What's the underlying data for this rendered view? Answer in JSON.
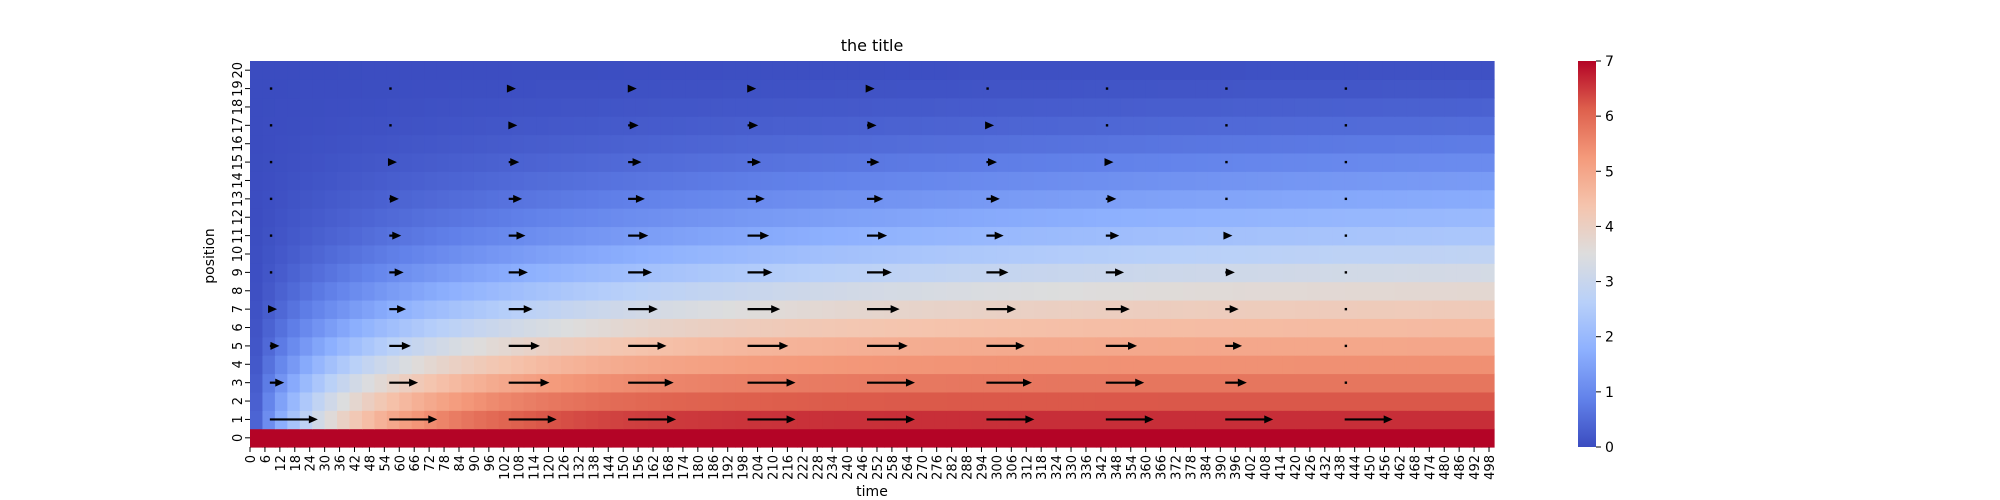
{
  "chart_data": {
    "type": "heatmap",
    "title": "the title",
    "xlabel": "time",
    "ylabel": "position",
    "x_ticks": [
      0,
      6,
      12,
      18,
      24,
      30,
      36,
      42,
      48,
      54,
      60,
      66,
      72,
      78,
      84,
      90,
      96,
      102,
      108,
      114,
      120,
      126,
      132,
      138,
      144,
      150,
      156,
      162,
      168,
      174,
      180,
      186,
      192,
      198,
      204,
      210,
      216,
      222,
      228,
      234,
      240,
      246,
      252,
      258,
      264,
      270,
      276,
      282,
      288,
      294,
      300,
      306,
      312,
      318,
      324,
      330,
      336,
      342,
      348,
      354,
      360,
      366,
      372,
      378,
      384,
      390,
      396,
      402,
      408,
      414,
      420,
      426,
      432,
      438,
      444,
      450,
      456,
      462,
      468,
      474,
      480,
      486,
      492,
      498
    ],
    "y_ticks": [
      0,
      1,
      2,
      3,
      4,
      5,
      6,
      7,
      8,
      9,
      10,
      11,
      12,
      13,
      14,
      15,
      16,
      17,
      18,
      19,
      20
    ],
    "x_range": [
      0,
      500
    ],
    "y_range": [
      0,
      20
    ],
    "colormap": "coolwarm",
    "colorbar": {
      "min": 0,
      "max": 7,
      "ticks": [
        0,
        1,
        2,
        3,
        4,
        5,
        6,
        7
      ]
    },
    "steady_state_values": [
      7.0,
      6.6,
      6.2,
      5.8,
      5.4,
      5.0,
      4.6,
      4.2,
      3.8,
      3.4,
      3.0,
      2.6,
      2.3,
      2.0,
      1.7,
      1.4,
      1.1,
      0.8,
      0.55,
      0.3,
      0.15
    ],
    "quiver": {
      "times": [
        12,
        60,
        108,
        156,
        204,
        252,
        300,
        348,
        396,
        444
      ],
      "positions": [
        1,
        3,
        5,
        7,
        9,
        11,
        13,
        15,
        17,
        19
      ],
      "relative_lengths": [
        [
          1.0,
          0.3,
          0.2,
          0.15,
          0.1,
          0.08,
          0.06,
          0.05,
          0.04,
          0.03
        ],
        [
          1.0,
          0.6,
          0.45,
          0.35,
          0.3,
          0.25,
          0.2,
          0.16,
          0.12,
          0.1
        ],
        [
          1.0,
          0.85,
          0.65,
          0.5,
          0.4,
          0.35,
          0.28,
          0.22,
          0.18,
          0.15
        ],
        [
          1.0,
          0.95,
          0.8,
          0.62,
          0.5,
          0.42,
          0.35,
          0.28,
          0.22,
          0.18
        ],
        [
          1.0,
          1.0,
          0.85,
          0.68,
          0.52,
          0.45,
          0.36,
          0.28,
          0.22,
          0.18
        ],
        [
          1.0,
          1.0,
          0.85,
          0.68,
          0.52,
          0.42,
          0.34,
          0.26,
          0.2,
          0.16
        ],
        [
          1.0,
          0.95,
          0.8,
          0.62,
          0.46,
          0.36,
          0.28,
          0.22,
          0.16,
          0.12
        ],
        [
          1.0,
          0.8,
          0.65,
          0.5,
          0.38,
          0.28,
          0.22,
          0.16,
          0.12,
          0.09
        ],
        [
          1.0,
          0.45,
          0.35,
          0.28,
          0.2,
          0.15,
          0.12,
          0.09,
          0.07,
          0.05
        ],
        [
          1.0,
          0.05,
          0.05,
          0.05,
          0.05,
          0.05,
          0.05,
          0.05,
          0.05,
          0.05
        ]
      ],
      "color": "#000000"
    }
  }
}
